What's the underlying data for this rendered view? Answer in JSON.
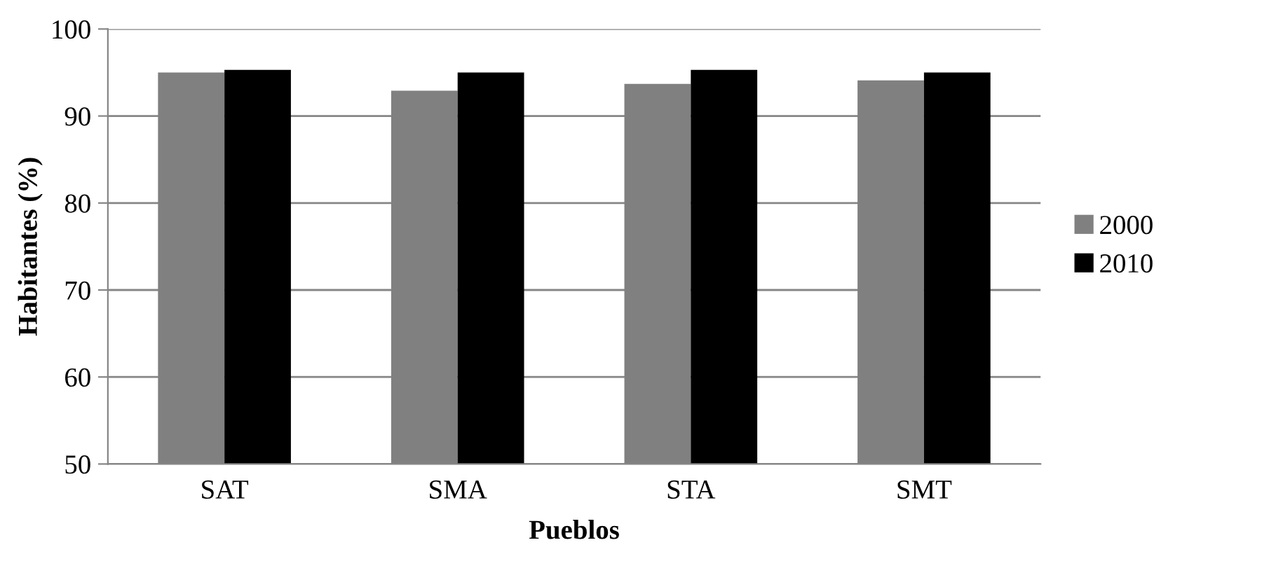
{
  "chart_data": {
    "type": "bar",
    "xlabel": "Pueblos",
    "ylabel": "Habitantes (%)",
    "categories": [
      "SAT",
      "SMA",
      "STA",
      "SMT"
    ],
    "series": [
      {
        "name": "2000",
        "color": "#808080",
        "values": [
          95.0,
          92.9,
          93.7,
          94.1
        ]
      },
      {
        "name": "2010",
        "color": "#000000",
        "values": [
          95.3,
          95.0,
          95.3,
          95.0
        ]
      }
    ],
    "ylim": [
      50,
      100
    ],
    "yticks": [
      50,
      60,
      70,
      80,
      90,
      100
    ],
    "grid": "y",
    "legend": "right"
  }
}
